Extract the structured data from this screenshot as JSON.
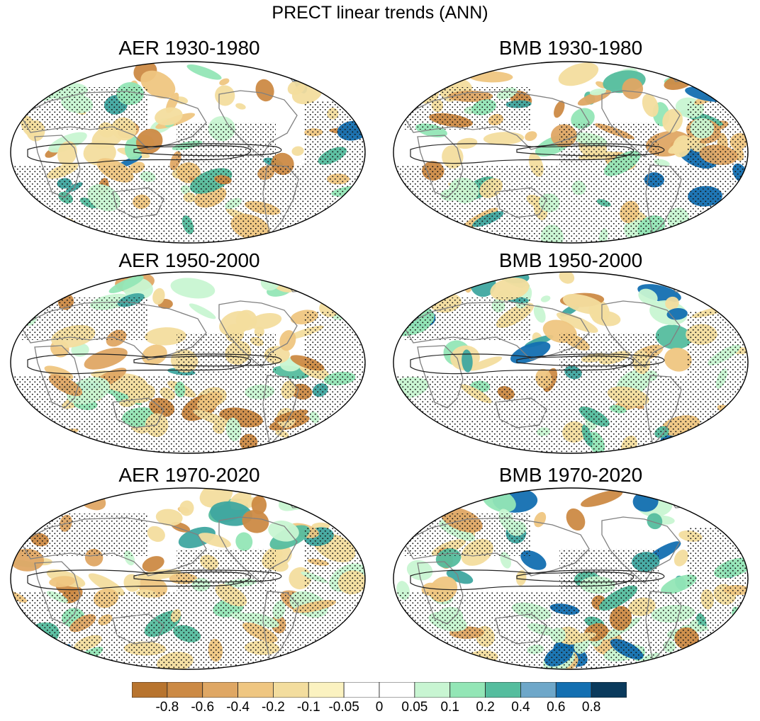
{
  "figure": {
    "title": "PRECT linear trends (ANN)"
  },
  "panels": [
    {
      "title": "AER 1930-1980"
    },
    {
      "title": "BMB 1930-1980"
    },
    {
      "title": "AER 1950-2000"
    },
    {
      "title": "BMB 1950-2000"
    },
    {
      "title": "AER 1970-2020"
    },
    {
      "title": "BMB 1970-2020"
    }
  ],
  "colorbar": {
    "labels": [
      "-0.8",
      "-0.6",
      "-0.4",
      "-0.2",
      "-0.1",
      "-0.05",
      "0",
      "0.05",
      "0.1",
      "0.2",
      "0.4",
      "0.6",
      "0.8"
    ],
    "colors": [
      "#b8742e",
      "#cc8a45",
      "#dfa764",
      "#efc681",
      "#f3dd9e",
      "#fbf2c0",
      "#ffffff",
      "#ffffff",
      "#c8f5d2",
      "#93e6b6",
      "#55bd9e",
      "#6ea7c9",
      "#136fb1",
      "#0a3a5c"
    ]
  }
}
